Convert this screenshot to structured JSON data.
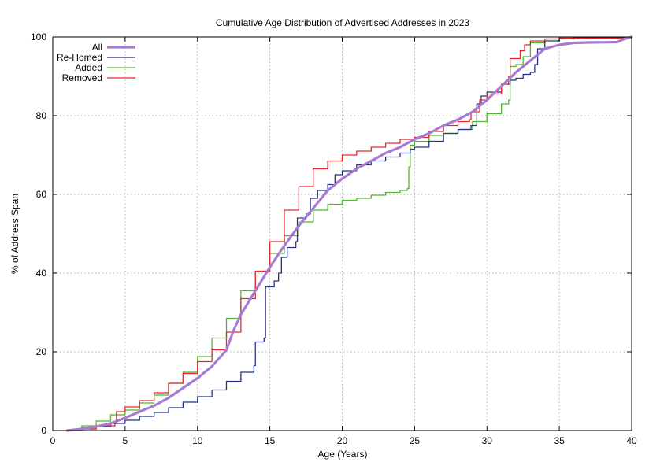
{
  "chart_data": {
    "type": "line",
    "title": "Cumulative Age Distribution of Advertised Addresses in 2023",
    "xlabel": "Age (Years)",
    "ylabel": "% of Address Span",
    "xlim": [
      0,
      40
    ],
    "ylim": [
      0,
      100
    ],
    "x_ticks": [
      0,
      5,
      10,
      15,
      20,
      25,
      30,
      35,
      40
    ],
    "y_ticks": [
      0,
      20,
      40,
      60,
      80,
      100
    ],
    "grid": true,
    "legend_position": "top-left",
    "series": [
      {
        "name": "All",
        "color": "#a77bd1",
        "step": false,
        "points": [
          [
            1.0,
            0
          ],
          [
            2,
            0.4
          ],
          [
            3,
            1.0
          ],
          [
            4,
            1.8
          ],
          [
            5,
            3.2
          ],
          [
            6,
            4.8
          ],
          [
            7,
            6.3
          ],
          [
            8,
            8.3
          ],
          [
            9,
            10.8
          ],
          [
            10,
            13.3
          ],
          [
            11,
            16.3
          ],
          [
            12,
            20.5
          ],
          [
            12.5,
            25.5
          ],
          [
            13,
            29.5
          ],
          [
            14,
            35.5
          ],
          [
            15,
            41.5
          ],
          [
            16,
            47
          ],
          [
            17,
            52
          ],
          [
            18,
            56.5
          ],
          [
            19,
            61
          ],
          [
            20,
            64
          ],
          [
            21,
            66.5
          ],
          [
            22,
            68.5
          ],
          [
            23,
            70.5
          ],
          [
            24,
            72
          ],
          [
            25,
            74
          ],
          [
            26,
            75.5
          ],
          [
            27,
            77.5
          ],
          [
            28,
            79
          ],
          [
            29,
            81
          ],
          [
            30,
            84
          ],
          [
            31,
            87.5
          ],
          [
            32,
            91
          ],
          [
            33,
            94
          ],
          [
            34,
            97
          ],
          [
            35,
            98
          ],
          [
            36,
            98.5
          ],
          [
            37,
            98.6
          ],
          [
            39,
            98.7
          ],
          [
            39.5,
            99.5
          ],
          [
            40,
            100
          ]
        ]
      },
      {
        "name": "Re-Homed",
        "color": "#25318c",
        "step": true,
        "points": [
          [
            1.0,
            0
          ],
          [
            2,
            0.4
          ],
          [
            3,
            1.0
          ],
          [
            4,
            1.8
          ],
          [
            5,
            2.6
          ],
          [
            6,
            3.6
          ],
          [
            7,
            4.6
          ],
          [
            8,
            5.8
          ],
          [
            9,
            7.2
          ],
          [
            10,
            8.6
          ],
          [
            11,
            10.3
          ],
          [
            12,
            12.5
          ],
          [
            13,
            14.8
          ],
          [
            13.9,
            16.5
          ],
          [
            14.0,
            22.5
          ],
          [
            14.6,
            23.5
          ],
          [
            14.7,
            36.5
          ],
          [
            15.3,
            38
          ],
          [
            15.6,
            40
          ],
          [
            15.8,
            44
          ],
          [
            16.2,
            46.5
          ],
          [
            16.8,
            48
          ],
          [
            16.9,
            54
          ],
          [
            17.5,
            55
          ],
          [
            17.8,
            59
          ],
          [
            18.3,
            61
          ],
          [
            19,
            62.5
          ],
          [
            19.5,
            65
          ],
          [
            20,
            66
          ],
          [
            21,
            67.5
          ],
          [
            22,
            68.5
          ],
          [
            23,
            69.5
          ],
          [
            24,
            70.5
          ],
          [
            24.7,
            71.5
          ],
          [
            25,
            72
          ],
          [
            26,
            73.5
          ],
          [
            27,
            75.5
          ],
          [
            28,
            76.5
          ],
          [
            28.9,
            77.5
          ],
          [
            29.3,
            83
          ],
          [
            29.6,
            85
          ],
          [
            30,
            86
          ],
          [
            31,
            88
          ],
          [
            31.6,
            89
          ],
          [
            32,
            89.5
          ],
          [
            32.5,
            90.5
          ],
          [
            33,
            91
          ],
          [
            33.3,
            93
          ],
          [
            33.5,
            97
          ],
          [
            34,
            99
          ],
          [
            35,
            99.6
          ],
          [
            36,
            99.8
          ],
          [
            40,
            100
          ]
        ]
      },
      {
        "name": "Added",
        "color": "#52b52a",
        "step": true,
        "points": [
          [
            1.0,
            0
          ],
          [
            2,
            1.2
          ],
          [
            3,
            2.4
          ],
          [
            4,
            4.0
          ],
          [
            5,
            5.2
          ],
          [
            6,
            7.0
          ],
          [
            7,
            9.0
          ],
          [
            8,
            12.0
          ],
          [
            9,
            14.8
          ],
          [
            10,
            18.8
          ],
          [
            11,
            23.5
          ],
          [
            12,
            28.5
          ],
          [
            13,
            35.5
          ],
          [
            14,
            40.5
          ],
          [
            15,
            45
          ],
          [
            16,
            49.5
          ],
          [
            17,
            53
          ],
          [
            18,
            56
          ],
          [
            19,
            57.5
          ],
          [
            20,
            58.5
          ],
          [
            21,
            59
          ],
          [
            22,
            59.8
          ],
          [
            23,
            60.5
          ],
          [
            24,
            61
          ],
          [
            24.5,
            61.5
          ],
          [
            24.6,
            67
          ],
          [
            24.7,
            72.5
          ],
          [
            25,
            73.5
          ],
          [
            26,
            75
          ],
          [
            27,
            75.5
          ],
          [
            28,
            76.5
          ],
          [
            29,
            78.5
          ],
          [
            30,
            80.5
          ],
          [
            31,
            83
          ],
          [
            31.5,
            84
          ],
          [
            31.6,
            92.5
          ],
          [
            32,
            93
          ],
          [
            32.5,
            95
          ],
          [
            33,
            98.5
          ],
          [
            34,
            99.5
          ],
          [
            35,
            99.8
          ],
          [
            40,
            100
          ]
        ]
      },
      {
        "name": "Removed",
        "color": "#e8262c",
        "step": true,
        "points": [
          [
            1.0,
            0
          ],
          [
            2,
            0.4
          ],
          [
            3,
            1.2
          ],
          [
            4.3,
            2.2
          ],
          [
            4.4,
            4.8
          ],
          [
            5,
            6.0
          ],
          [
            6,
            7.6
          ],
          [
            7,
            9.6
          ],
          [
            8,
            12
          ],
          [
            9,
            14.5
          ],
          [
            10,
            17.5
          ],
          [
            11,
            20.5
          ],
          [
            12,
            25
          ],
          [
            13,
            33.5
          ],
          [
            14,
            40.5
          ],
          [
            15,
            48
          ],
          [
            16,
            56
          ],
          [
            17,
            62
          ],
          [
            18,
            66.5
          ],
          [
            19,
            68.5
          ],
          [
            20,
            70
          ],
          [
            21,
            71
          ],
          [
            22,
            72
          ],
          [
            23,
            73
          ],
          [
            24,
            74
          ],
          [
            25,
            74.5
          ],
          [
            26,
            76
          ],
          [
            27,
            77.5
          ],
          [
            28,
            78.5
          ],
          [
            28.8,
            79
          ],
          [
            28.9,
            81
          ],
          [
            29.5,
            84
          ],
          [
            30,
            85.5
          ],
          [
            31,
            88
          ],
          [
            31.5,
            90
          ],
          [
            31.6,
            94.5
          ],
          [
            32.3,
            96.5
          ],
          [
            32.6,
            98
          ],
          [
            33,
            99
          ],
          [
            34,
            99.5
          ],
          [
            35,
            99.7
          ],
          [
            40,
            100
          ]
        ]
      }
    ]
  }
}
